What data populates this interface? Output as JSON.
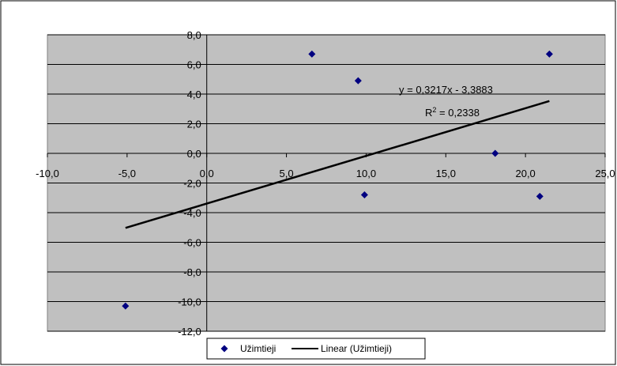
{
  "chart_data": {
    "type": "scatter",
    "title": "",
    "xlabel": "",
    "ylabel": "",
    "xlim": [
      -10,
      25
    ],
    "ylim": [
      -12,
      8
    ],
    "x_ticks": [
      -10,
      -5,
      0,
      5,
      10,
      15,
      20,
      25
    ],
    "y_ticks": [
      8,
      6,
      4,
      2,
      0,
      -2,
      -4,
      -6,
      -8,
      -10,
      -12
    ],
    "x_tick_labels": [
      "-10,0",
      "-5,0",
      "0,0",
      "5,0",
      "10,0",
      "15,0",
      "20,0",
      "25,0"
    ],
    "y_tick_labels": [
      "8,0",
      "6,0",
      "4,0",
      "2,0",
      "0,0",
      "-2,0",
      "-4,0",
      "-6,0",
      "-8,0",
      "-10,0",
      "-12,0"
    ],
    "grid": "horizontal",
    "legend_position": "bottom",
    "plot_background": "#c0c0c0",
    "series": [
      {
        "name": "Užimtieji",
        "marker": "diamond",
        "color": "#000080",
        "points": [
          {
            "x": -5.1,
            "y": -10.3
          },
          {
            "x": 6.6,
            "y": 6.7
          },
          {
            "x": 9.5,
            "y": 4.9
          },
          {
            "x": 9.9,
            "y": -2.8
          },
          {
            "x": 18.1,
            "y": 0.0
          },
          {
            "x": 20.9,
            "y": -2.9
          },
          {
            "x": 21.5,
            "y": 6.7
          }
        ]
      }
    ],
    "trendline": {
      "name": "Linear (Užimtieji)",
      "slope": 0.3217,
      "intercept": -3.3883,
      "x_range": [
        -5.1,
        21.5
      ],
      "color": "#000000",
      "equation": "y = 0,3217x - 3,3883",
      "r2_label": "R",
      "r2_sup": "2",
      "r2_value": " = 0,2338"
    }
  }
}
